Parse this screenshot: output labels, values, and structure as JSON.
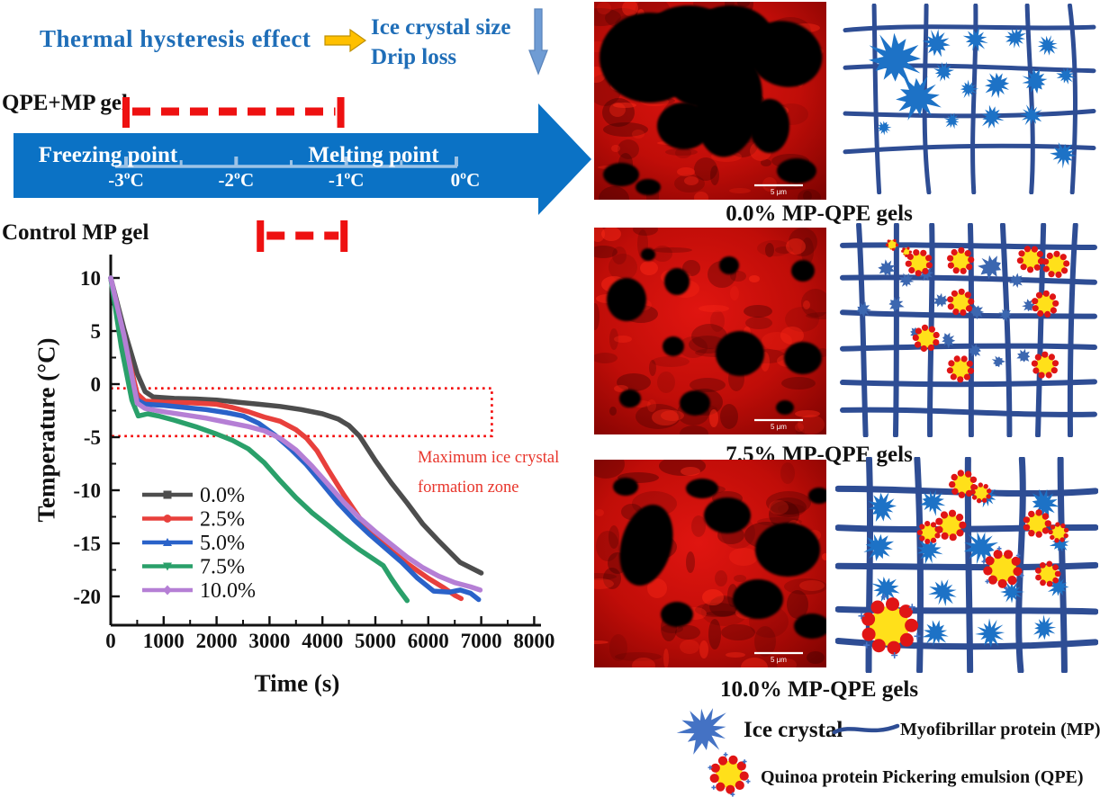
{
  "banner": {
    "title": "Thermal hysteresis effect",
    "outcome_line1": "Ice crystal size",
    "outcome_line2": "Drip loss"
  },
  "hysteresis": {
    "qpe_label": "QPE+MP gel",
    "control_label": "Control MP gel",
    "freezing_label": "Freezing point",
    "melting_label": "Melting point",
    "scale_ticks": [
      "-3ºC",
      "-2ºC",
      "-1ºC",
      "0ºC"
    ],
    "scale_values": [
      -3,
      -2,
      -1,
      0
    ],
    "qpe_range_c": [
      -3.0,
      -1.05
    ],
    "control_range_c": [
      -1.78,
      -1.02
    ]
  },
  "chart_data": {
    "type": "line",
    "title": "",
    "xlabel": "Time (s)",
    "ylabel": "Temperature (°C)",
    "xlim": [
      0,
      8100
    ],
    "ylim": [
      -22.5,
      12.2
    ],
    "xticks": [
      0,
      1000,
      2000,
      3000,
      4000,
      5000,
      6000,
      7000,
      8000
    ],
    "yticks": [
      10,
      5,
      0,
      -5,
      -10,
      -15,
      -20
    ],
    "grid": false,
    "legend_position": "inside lower-left",
    "annotation": {
      "lines": [
        "Maximum ice crystal",
        "formation zone"
      ],
      "box": {
        "x": [
          0,
          7200
        ],
        "y": [
          -0.4,
          -4.9
        ]
      },
      "color": "#e8352b"
    },
    "series": [
      {
        "name": "0.0%",
        "color": "#4d4d4d",
        "marker": "square",
        "points": [
          [
            0,
            10
          ],
          [
            250,
            5.2
          ],
          [
            500,
            1.0
          ],
          [
            650,
            -0.7
          ],
          [
            800,
            -1.2
          ],
          [
            1200,
            -1.35
          ],
          [
            1600,
            -1.4
          ],
          [
            2000,
            -1.5
          ],
          [
            2400,
            -1.7
          ],
          [
            2800,
            -1.9
          ],
          [
            3200,
            -2.1
          ],
          [
            3600,
            -2.4
          ],
          [
            4000,
            -2.8
          ],
          [
            4300,
            -3.3
          ],
          [
            4500,
            -3.9
          ],
          [
            4700,
            -4.9
          ],
          [
            5000,
            -7.2
          ],
          [
            5300,
            -9.3
          ],
          [
            5600,
            -11.2
          ],
          [
            5900,
            -13.2
          ],
          [
            6200,
            -14.8
          ],
          [
            6600,
            -16.8
          ],
          [
            7000,
            -17.8
          ]
        ]
      },
      {
        "name": "2.5%",
        "color": "#e8403c",
        "marker": "circle",
        "points": [
          [
            0,
            10
          ],
          [
            250,
            4.2
          ],
          [
            500,
            -0.9
          ],
          [
            650,
            -1.6
          ],
          [
            1000,
            -1.7
          ],
          [
            1500,
            -1.75
          ],
          [
            2000,
            -1.9
          ],
          [
            2300,
            -2.2
          ],
          [
            2600,
            -2.6
          ],
          [
            2900,
            -3.1
          ],
          [
            3200,
            -3.5
          ],
          [
            3500,
            -4.3
          ],
          [
            3700,
            -5.1
          ],
          [
            3900,
            -6.3
          ],
          [
            4100,
            -8.0
          ],
          [
            4400,
            -10.4
          ],
          [
            4700,
            -12.6
          ],
          [
            5000,
            -14.3
          ],
          [
            5300,
            -15.7
          ],
          [
            5600,
            -16.9
          ],
          [
            6000,
            -18.3
          ],
          [
            6300,
            -19.2
          ],
          [
            6500,
            -19.9
          ],
          [
            6620,
            -20.2
          ]
        ]
      },
      {
        "name": "5.0%",
        "color": "#2a62c9",
        "marker": "triangle-up",
        "points": [
          [
            0,
            10
          ],
          [
            250,
            3.6
          ],
          [
            500,
            -1.5
          ],
          [
            650,
            -1.9
          ],
          [
            1000,
            -2.0
          ],
          [
            1400,
            -2.2
          ],
          [
            1800,
            -2.4
          ],
          [
            2200,
            -2.7
          ],
          [
            2500,
            -3.0
          ],
          [
            2800,
            -3.7
          ],
          [
            3100,
            -4.8
          ],
          [
            3400,
            -6.1
          ],
          [
            3700,
            -7.6
          ],
          [
            4000,
            -9.4
          ],
          [
            4300,
            -11.2
          ],
          [
            4600,
            -12.8
          ],
          [
            4900,
            -14.2
          ],
          [
            5200,
            -15.5
          ],
          [
            5500,
            -16.8
          ],
          [
            5800,
            -18.3
          ],
          [
            6100,
            -19.5
          ],
          [
            6400,
            -19.6
          ],
          [
            6600,
            -19.4
          ],
          [
            6800,
            -19.7
          ],
          [
            6950,
            -20.3
          ]
        ]
      },
      {
        "name": "7.5%",
        "color": "#2aa06a",
        "marker": "triangle-down",
        "points": [
          [
            0,
            10
          ],
          [
            200,
            3.5
          ],
          [
            400,
            -1.5
          ],
          [
            520,
            -3.0
          ],
          [
            700,
            -2.8
          ],
          [
            900,
            -3.0
          ],
          [
            1200,
            -3.4
          ],
          [
            1600,
            -4.0
          ],
          [
            2000,
            -4.7
          ],
          [
            2300,
            -5.3
          ],
          [
            2600,
            -6.1
          ],
          [
            2900,
            -7.4
          ],
          [
            3200,
            -9.1
          ],
          [
            3500,
            -10.7
          ],
          [
            3800,
            -12.1
          ],
          [
            4100,
            -13.3
          ],
          [
            4400,
            -14.5
          ],
          [
            4700,
            -15.6
          ],
          [
            5000,
            -16.6
          ],
          [
            5150,
            -17.1
          ],
          [
            5300,
            -18.3
          ],
          [
            5450,
            -19.4
          ],
          [
            5600,
            -20.4
          ]
        ]
      },
      {
        "name": "10.0%",
        "color": "#b57fd5",
        "marker": "diamond",
        "points": [
          [
            0,
            10
          ],
          [
            250,
            4.6
          ],
          [
            500,
            -1.8
          ],
          [
            650,
            -2.3
          ],
          [
            1000,
            -2.6
          ],
          [
            1400,
            -2.9
          ],
          [
            1800,
            -3.2
          ],
          [
            2200,
            -3.6
          ],
          [
            2600,
            -4.0
          ],
          [
            2900,
            -4.4
          ],
          [
            3200,
            -5.1
          ],
          [
            3500,
            -6.2
          ],
          [
            3800,
            -7.7
          ],
          [
            4100,
            -9.4
          ],
          [
            4400,
            -11.1
          ],
          [
            4700,
            -12.6
          ],
          [
            5000,
            -13.9
          ],
          [
            5300,
            -15.1
          ],
          [
            5600,
            -16.3
          ],
          [
            5900,
            -17.3
          ],
          [
            6200,
            -18.1
          ],
          [
            6500,
            -18.7
          ],
          [
            6800,
            -19.1
          ],
          [
            6980,
            -19.4
          ]
        ]
      }
    ]
  },
  "panels": [
    {
      "caption": "0.0% MP-QPE gels",
      "scalebar": "5 μm"
    },
    {
      "caption": "7.5% MP-QPE gels",
      "scalebar": "5 μm"
    },
    {
      "caption": "10.0% MP-QPE gels",
      "scalebar": "5 μm"
    }
  ],
  "key": {
    "ice": "Ice crystal",
    "mp": "Myofibrillar protein (MP)",
    "qpe": "Quinoa protein Pickering emulsion (QPE)"
  },
  "colors": {
    "arrow_blue": "#0b72c5",
    "heading_blue": "#1f6eb8",
    "scale_light_blue": "#9dc3e6",
    "dash_red": "#ee1111",
    "mesh_navy": "#2e4d94",
    "crystal_blue": "#1d72c6",
    "key_star_blue": "#4472c4",
    "qpe_yellow": "#ffe01a",
    "qpe_dot_red": "#e01515",
    "micro_red": "#c00d08"
  }
}
